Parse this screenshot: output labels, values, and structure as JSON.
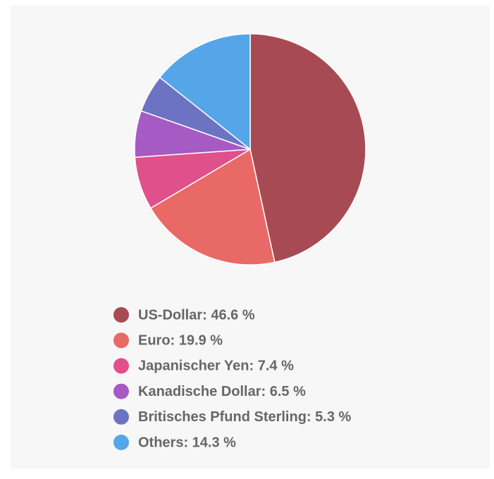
{
  "chart_data": {
    "type": "pie",
    "labels": [
      "US-Dollar: 46.6 %",
      "Euro: 19.9 %",
      "Japanischer Yen: 7.4 %",
      "Kanadische Dollar: 6.5 %",
      "Britisches Pfund Sterling: 5.3 %",
      "Others: 14.3 %"
    ],
    "values": [
      46.6,
      19.9,
      7.4,
      6.5,
      5.3,
      14.3
    ],
    "colors": [
      "#a84a54",
      "#e96966",
      "#e0508a",
      "#a65ac4",
      "#6c73c2",
      "#55a6e8"
    ]
  }
}
